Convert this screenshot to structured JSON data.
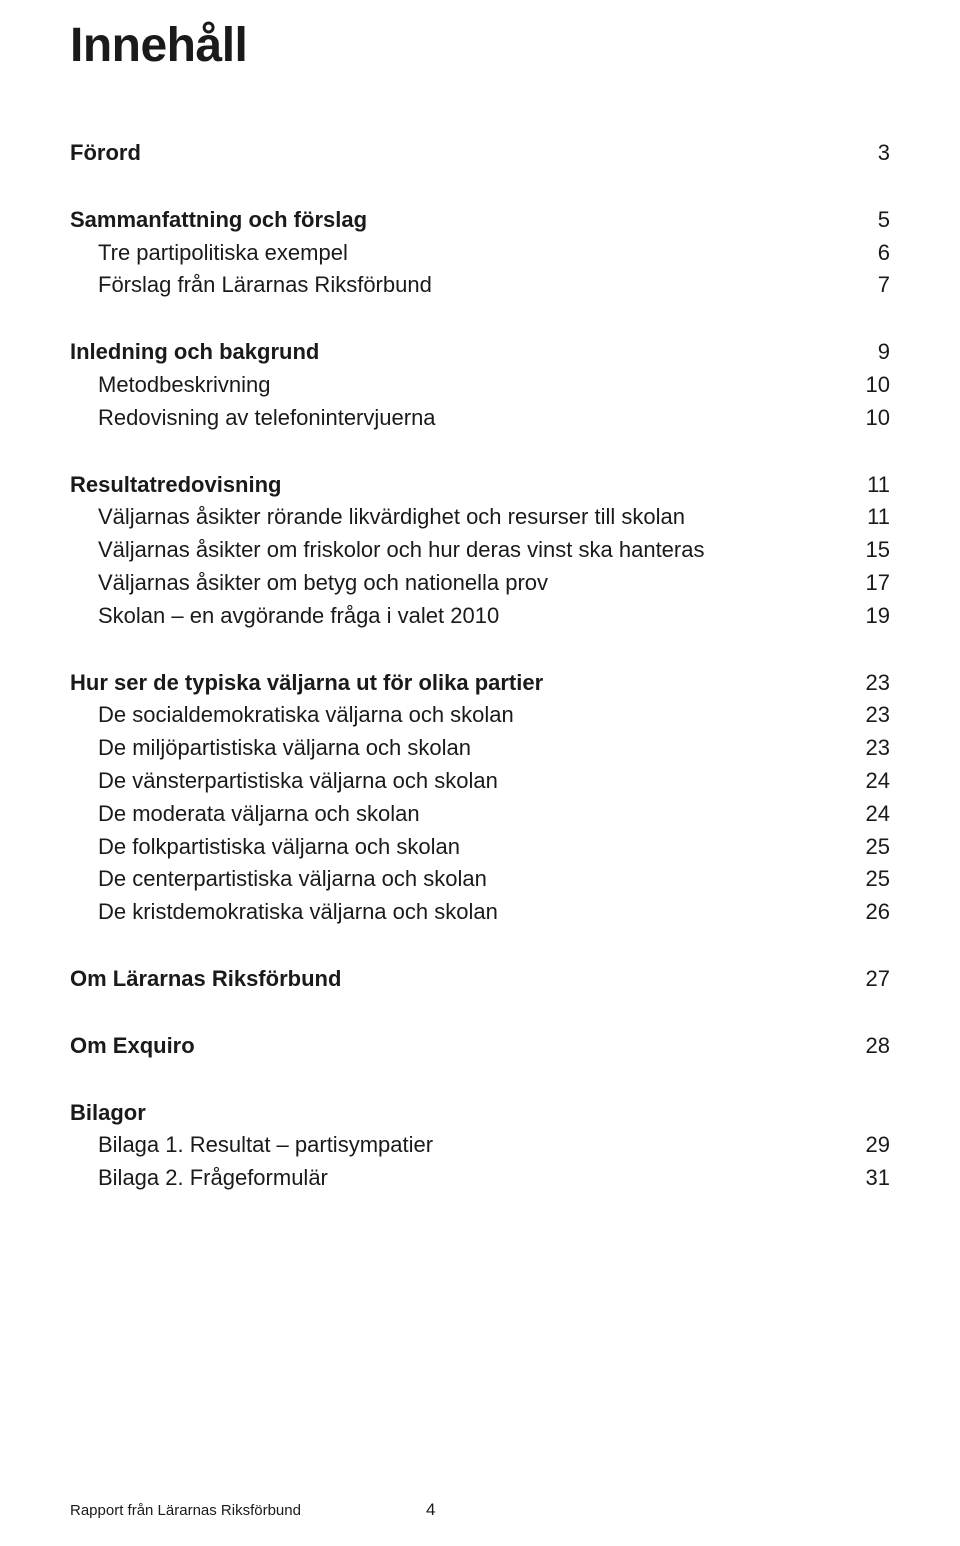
{
  "title": "Innehåll",
  "sections": [
    {
      "rows": [
        {
          "label": "Förord",
          "page": "3",
          "bold": true,
          "indent": false
        }
      ]
    },
    {
      "rows": [
        {
          "label": "Sammanfattning och förslag",
          "page": "5",
          "bold": true,
          "indent": false
        },
        {
          "label": "Tre partipolitiska exempel",
          "page": "6",
          "bold": false,
          "indent": true
        },
        {
          "label": "Förslag från Lärarnas Riksförbund",
          "page": "7",
          "bold": false,
          "indent": true
        }
      ]
    },
    {
      "rows": [
        {
          "label": "Inledning och bakgrund",
          "page": "9",
          "bold": true,
          "indent": false
        },
        {
          "label": "Metodbeskrivning",
          "page": "10",
          "bold": false,
          "indent": true
        },
        {
          "label": "Redovisning av telefonintervjuerna",
          "page": "10",
          "bold": false,
          "indent": true
        }
      ]
    },
    {
      "rows": [
        {
          "label": "Resultatredovisning",
          "page": "11",
          "bold": true,
          "indent": false
        },
        {
          "label": "Väljarnas åsikter rörande likvärdighet och resurser till skolan",
          "page": "11",
          "bold": false,
          "indent": true
        },
        {
          "label": "Väljarnas åsikter om friskolor och hur deras vinst ska hanteras",
          "page": "15",
          "bold": false,
          "indent": true
        },
        {
          "label": "Väljarnas åsikter om betyg och nationella prov",
          "page": "17",
          "bold": false,
          "indent": true
        },
        {
          "label": "Skolan – en avgörande fråga i valet 2010",
          "page": "19",
          "bold": false,
          "indent": true
        }
      ]
    },
    {
      "rows": [
        {
          "label": "Hur ser de typiska väljarna ut för olika partier",
          "page": "23",
          "bold": true,
          "indent": false
        },
        {
          "label": "De socialdemokratiska väljarna och skolan",
          "page": "23",
          "bold": false,
          "indent": true
        },
        {
          "label": "De miljöpartistiska väljarna och skolan",
          "page": "23",
          "bold": false,
          "indent": true
        },
        {
          "label": "De vänsterpartistiska väljarna och skolan",
          "page": "24",
          "bold": false,
          "indent": true
        },
        {
          "label": "De moderata väljarna och skolan",
          "page": "24",
          "bold": false,
          "indent": true
        },
        {
          "label": "De folkpartistiska väljarna och skolan",
          "page": "25",
          "bold": false,
          "indent": true
        },
        {
          "label": "De centerpartistiska väljarna och skolan",
          "page": "25",
          "bold": false,
          "indent": true
        },
        {
          "label": "De kristdemokratiska väljarna och skolan",
          "page": "26",
          "bold": false,
          "indent": true
        }
      ]
    },
    {
      "rows": [
        {
          "label": "Om Lärarnas Riksförbund",
          "page": "27",
          "bold": true,
          "indent": false
        }
      ]
    },
    {
      "rows": [
        {
          "label": "Om Exquiro",
          "page": "28",
          "bold": true,
          "indent": false
        }
      ]
    },
    {
      "rows": [
        {
          "label": "Bilagor",
          "page": "",
          "bold": true,
          "indent": false
        },
        {
          "label": "Bilaga 1. Resultat – partisympatier",
          "page": "29",
          "bold": false,
          "indent": true
        },
        {
          "label": "Bilaga 2. Frågeformulär",
          "page": "31",
          "bold": false,
          "indent": true
        }
      ]
    }
  ],
  "footer": {
    "text": "Rapport från Lärarnas Riksförbund",
    "pagenum": "4"
  }
}
